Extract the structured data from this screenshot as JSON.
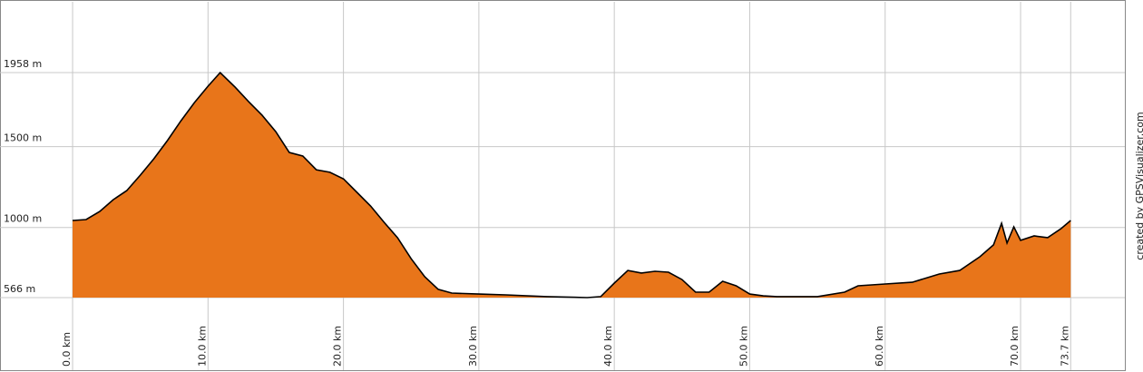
{
  "chart_data": {
    "type": "area",
    "x": [
      0,
      1,
      2,
      3,
      4,
      5,
      6,
      7,
      8,
      9,
      10,
      10.9,
      12,
      13,
      14,
      15,
      16,
      17,
      18,
      19,
      20,
      21,
      22,
      23,
      24,
      25,
      26,
      27,
      28,
      30,
      32,
      35,
      38,
      39,
      40,
      41,
      42,
      43,
      44,
      45,
      46,
      47,
      48,
      49,
      50,
      51,
      52,
      55,
      57,
      58,
      60,
      62,
      64,
      65.5,
      67,
      68,
      68.6,
      69,
      69.5,
      70,
      71,
      72,
      73,
      73.7
    ],
    "series": [
      {
        "color": "#e8751a",
        "values": [
          1043,
          1049,
          1099,
          1172,
          1228,
          1324,
          1425,
          1537,
          1660,
          1773,
          1874,
          1958,
          1868,
          1778,
          1694,
          1593,
          1464,
          1442,
          1357,
          1341,
          1301,
          1217,
          1133,
          1032,
          936,
          807,
          695,
          617,
          594,
          588,
          583,
          572,
          566,
          572,
          656,
          734,
          718,
          729,
          723,
          678,
          600,
          600,
          667,
          639,
          588,
          577,
          572,
          572,
          600,
          639,
          650,
          661,
          712,
          734,
          819,
          892,
          1026,
          904,
          1004,
          920,
          948,
          937,
          993,
          1043
        ]
      }
    ],
    "line_color": "#000000",
    "xlim": [
      -5.36,
      77.7
    ],
    "ylim": [
      117,
      2396
    ],
    "xticks": [
      {
        "value": 0,
        "label": "0.0 km"
      },
      {
        "value": 10,
        "label": "10.0 km"
      },
      {
        "value": 20,
        "label": "20.0 km"
      },
      {
        "value": 30,
        "label": "30.0 km"
      },
      {
        "value": 40,
        "label": "40.0 km"
      },
      {
        "value": 50,
        "label": "50.0 km"
      },
      {
        "value": 60,
        "label": "60.0 km"
      },
      {
        "value": 70,
        "label": "70.0 km"
      },
      {
        "value": 73.7,
        "label": "73.7 km"
      }
    ],
    "yticks": [
      {
        "value": 566,
        "label": "566 m"
      },
      {
        "value": 1000,
        "label": "1000 m"
      },
      {
        "value": 1500,
        "label": "1500 m"
      },
      {
        "value": 1958,
        "label": "1958 m"
      }
    ],
    "grid": true,
    "credit": "created by GPSVisualizer.com"
  }
}
